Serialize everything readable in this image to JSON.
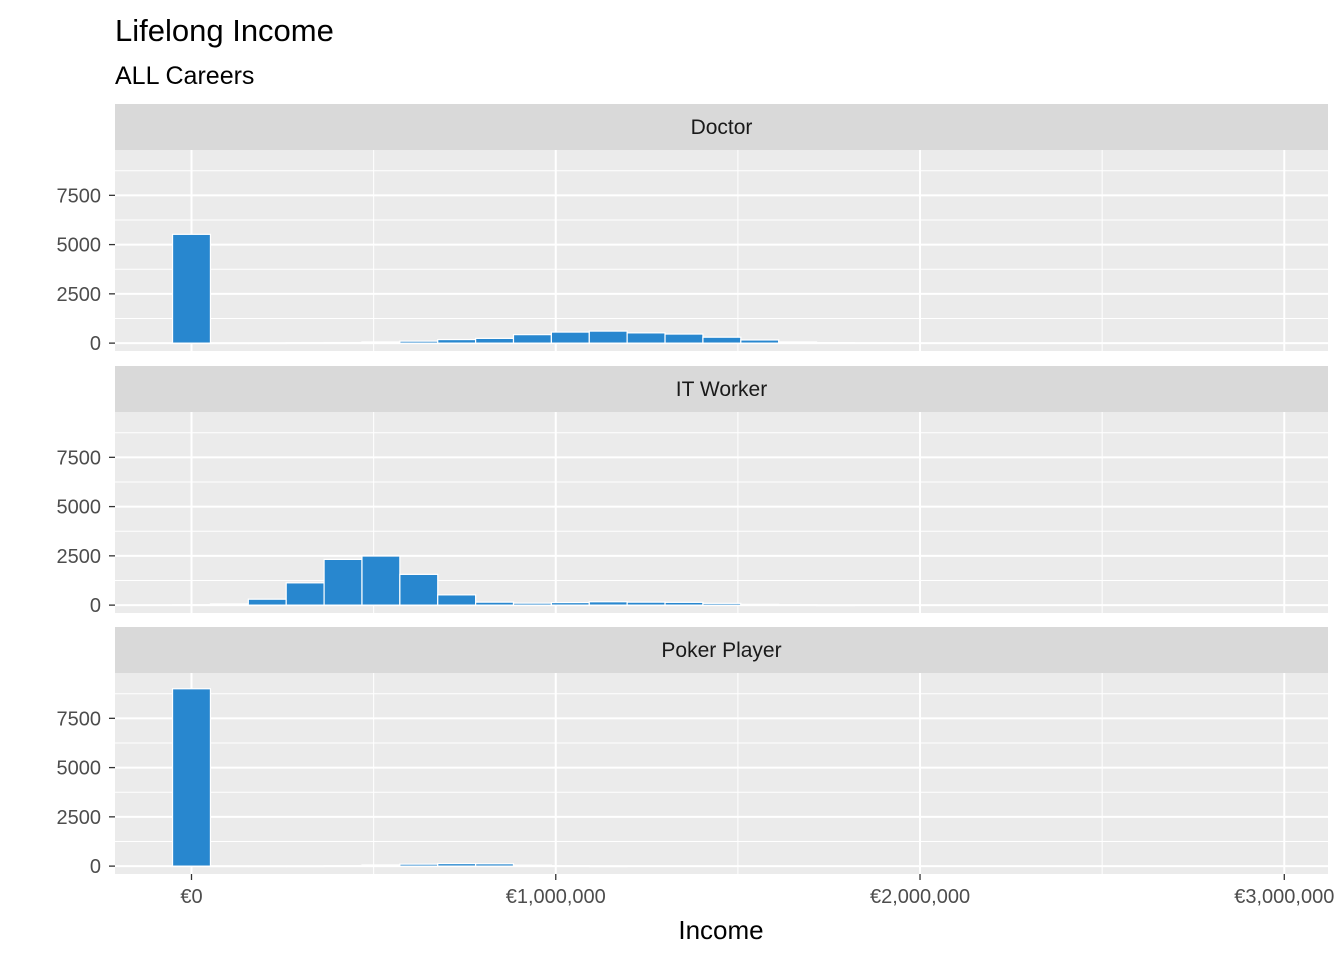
{
  "chart_data": {
    "type": "bar",
    "title": "Lifelong Income",
    "subtitle": "ALL Careers",
    "xlabel": "Income",
    "ylabel": "",
    "bin_width": 104000,
    "xlim": [
      -210000,
      3120000
    ],
    "ylim": [
      -400,
      9800
    ],
    "x_ticks": [
      0,
      1000000,
      2000000,
      3000000
    ],
    "x_tick_labels": [
      "€0",
      "€1,000,000",
      "€2,000,000",
      "€3,000,000"
    ],
    "y_ticks": [
      0,
      2500,
      5000,
      7500
    ],
    "y_tick_labels": [
      "0",
      "2500",
      "5000",
      "7500"
    ],
    "bar_color": "#2887cf",
    "panel_background": "#ebebeb",
    "strip_background": "#d9d9d9",
    "grid": true,
    "panels": [
      {
        "label": "Doctor",
        "bins": [
          {
            "x": 0,
            "count": 5520
          },
          {
            "x": 104000,
            "count": 5
          },
          {
            "x": 208000,
            "count": 5
          },
          {
            "x": 312000,
            "count": 15
          },
          {
            "x": 416000,
            "count": 30
          },
          {
            "x": 520000,
            "count": 60
          },
          {
            "x": 624000,
            "count": 100
          },
          {
            "x": 728000,
            "count": 180
          },
          {
            "x": 832000,
            "count": 240
          },
          {
            "x": 936000,
            "count": 430
          },
          {
            "x": 1040000,
            "count": 560
          },
          {
            "x": 1144000,
            "count": 610
          },
          {
            "x": 1248000,
            "count": 520
          },
          {
            "x": 1352000,
            "count": 460
          },
          {
            "x": 1456000,
            "count": 300
          },
          {
            "x": 1560000,
            "count": 160
          },
          {
            "x": 1664000,
            "count": 60
          },
          {
            "x": 1768000,
            "count": 25
          },
          {
            "x": 1872000,
            "count": 8
          }
        ]
      },
      {
        "label": "IT Worker",
        "bins": [
          {
            "x": 0,
            "count": 10
          },
          {
            "x": 104000,
            "count": 60
          },
          {
            "x": 208000,
            "count": 300
          },
          {
            "x": 312000,
            "count": 1130
          },
          {
            "x": 416000,
            "count": 2320
          },
          {
            "x": 520000,
            "count": 2490
          },
          {
            "x": 624000,
            "count": 1560
          },
          {
            "x": 728000,
            "count": 520
          },
          {
            "x": 832000,
            "count": 150
          },
          {
            "x": 936000,
            "count": 100
          },
          {
            "x": 1040000,
            "count": 130
          },
          {
            "x": 1144000,
            "count": 170
          },
          {
            "x": 1248000,
            "count": 150
          },
          {
            "x": 1352000,
            "count": 140
          },
          {
            "x": 1456000,
            "count": 90
          },
          {
            "x": 1560000,
            "count": 40
          },
          {
            "x": 1664000,
            "count": 15
          },
          {
            "x": 1768000,
            "count": 3
          }
        ]
      },
      {
        "label": "Poker Player",
        "bins": [
          {
            "x": 0,
            "count": 9000
          },
          {
            "x": 104000,
            "count": 3
          },
          {
            "x": 208000,
            "count": 3
          },
          {
            "x": 312000,
            "count": 3
          },
          {
            "x": 416000,
            "count": 10
          },
          {
            "x": 520000,
            "count": 60
          },
          {
            "x": 624000,
            "count": 100
          },
          {
            "x": 728000,
            "count": 130
          },
          {
            "x": 832000,
            "count": 120
          },
          {
            "x": 936000,
            "count": 50
          },
          {
            "x": 1040000,
            "count": 15
          },
          {
            "x": 1144000,
            "count": 3
          }
        ]
      }
    ]
  }
}
